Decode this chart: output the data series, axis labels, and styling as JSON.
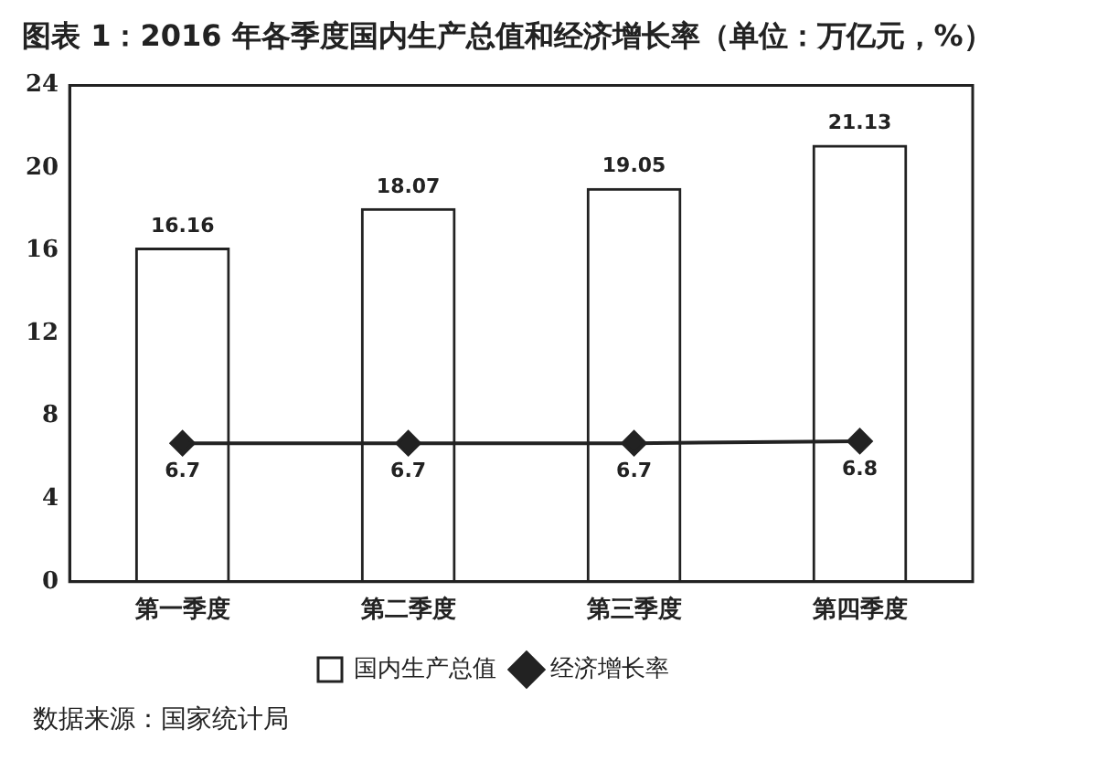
{
  "chart_data": {
    "type": "bar",
    "title": "图表 1：2016 年各季度国内生产总值和经济增长率（单位：万亿元，%）",
    "categories": [
      "第一季度",
      "第二季度",
      "第三季度",
      "第四季度"
    ],
    "series": [
      {
        "name": "国内生产总值",
        "color": "#222222",
        "values": [
          16.16,
          18.07,
          19.05,
          21.13
        ]
      },
      {
        "name": "经济增长率",
        "type": "line",
        "color": "#222222",
        "values": [
          6.7,
          6.7,
          6.7,
          6.8
        ]
      }
    ],
    "ylim": [
      0,
      24
    ],
    "yticks": [
      0,
      4,
      8,
      12,
      16,
      20,
      24
    ],
    "grid": false,
    "legend": "bottom",
    "marker": "diamond",
    "data_labels": true,
    "annotations": [
      "数据来源：国家统计局"
    ]
  }
}
